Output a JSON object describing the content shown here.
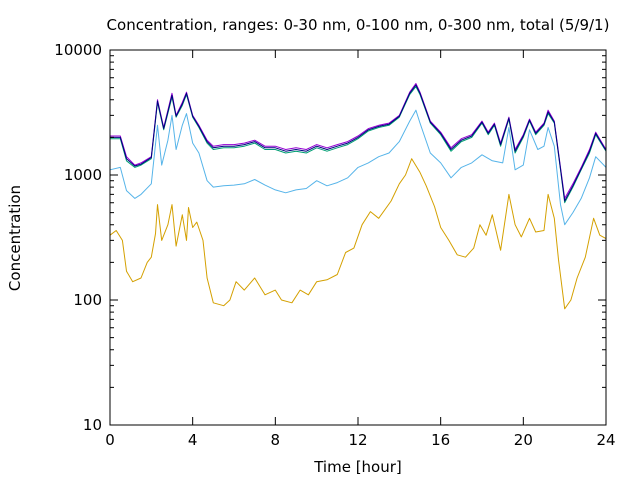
{
  "chart_data": {
    "type": "line",
    "title": "Concentration, ranges: 0-30 nm, 0-100 nm, 0-300 nm, total (5/9/1)",
    "xlabel": "Time [hour]",
    "ylabel": "Concentration",
    "xlim": [
      0,
      24
    ],
    "ylim": [
      10,
      10000
    ],
    "yscale": "log",
    "grid": false,
    "legend": "none",
    "x_ticks": [
      0,
      4,
      8,
      12,
      16,
      20,
      24
    ],
    "x_tick_labels": [
      "0",
      "4",
      "8",
      "12",
      "16",
      "20",
      "24"
    ],
    "y_ticks": [
      10,
      100,
      1000,
      10000
    ],
    "y_tick_labels": [
      "10",
      "100",
      "1000",
      "10000"
    ],
    "series": [
      {
        "color": "#d4a000",
        "points": [
          [
            0,
            330
          ],
          [
            0.3,
            360
          ],
          [
            0.6,
            300
          ],
          [
            0.8,
            170
          ],
          [
            1.1,
            140
          ],
          [
            1.5,
            150
          ],
          [
            1.8,
            200
          ],
          [
            2.0,
            220
          ],
          [
            2.2,
            340
          ],
          [
            2.3,
            580
          ],
          [
            2.5,
            300
          ],
          [
            2.8,
            400
          ],
          [
            3.0,
            580
          ],
          [
            3.2,
            270
          ],
          [
            3.5,
            480
          ],
          [
            3.7,
            300
          ],
          [
            3.8,
            550
          ],
          [
            4.0,
            380
          ],
          [
            4.2,
            420
          ],
          [
            4.5,
            300
          ],
          [
            4.7,
            150
          ],
          [
            5.0,
            95
          ],
          [
            5.5,
            90
          ],
          [
            5.8,
            100
          ],
          [
            6.1,
            140
          ],
          [
            6.5,
            120
          ],
          [
            7.0,
            150
          ],
          [
            7.5,
            110
          ],
          [
            8.0,
            120
          ],
          [
            8.3,
            100
          ],
          [
            8.8,
            95
          ],
          [
            9.2,
            120
          ],
          [
            9.6,
            110
          ],
          [
            10.0,
            140
          ],
          [
            10.5,
            145
          ],
          [
            11.0,
            160
          ],
          [
            11.4,
            240
          ],
          [
            11.8,
            260
          ],
          [
            12.2,
            400
          ],
          [
            12.6,
            510
          ],
          [
            13.0,
            450
          ],
          [
            13.6,
            620
          ],
          [
            14.0,
            850
          ],
          [
            14.3,
            1000
          ],
          [
            14.6,
            1350
          ],
          [
            15.0,
            1050
          ],
          [
            15.3,
            820
          ],
          [
            15.7,
            560
          ],
          [
            16.0,
            380
          ],
          [
            16.4,
            300
          ],
          [
            16.8,
            230
          ],
          [
            17.2,
            220
          ],
          [
            17.6,
            260
          ],
          [
            17.9,
            400
          ],
          [
            18.2,
            330
          ],
          [
            18.5,
            480
          ],
          [
            18.9,
            250
          ],
          [
            19.3,
            700
          ],
          [
            19.6,
            400
          ],
          [
            19.9,
            320
          ],
          [
            20.3,
            450
          ],
          [
            20.6,
            350
          ],
          [
            21.0,
            360
          ],
          [
            21.2,
            700
          ],
          [
            21.5,
            450
          ],
          [
            21.7,
            210
          ],
          [
            22.0,
            85
          ],
          [
            22.3,
            100
          ],
          [
            22.6,
            150
          ],
          [
            23.0,
            220
          ],
          [
            23.4,
            450
          ],
          [
            23.7,
            330
          ],
          [
            24.0,
            310
          ]
        ]
      },
      {
        "color": "#56b4e9",
        "points": [
          [
            0,
            1100
          ],
          [
            0.5,
            1150
          ],
          [
            0.8,
            750
          ],
          [
            1.2,
            650
          ],
          [
            1.5,
            700
          ],
          [
            2.0,
            850
          ],
          [
            2.3,
            2500
          ],
          [
            2.5,
            1200
          ],
          [
            2.8,
            1900
          ],
          [
            3.0,
            3000
          ],
          [
            3.2,
            1600
          ],
          [
            3.5,
            2500
          ],
          [
            3.7,
            3100
          ],
          [
            4.0,
            1800
          ],
          [
            4.3,
            1500
          ],
          [
            4.7,
            900
          ],
          [
            5.0,
            800
          ],
          [
            5.5,
            820
          ],
          [
            6.0,
            830
          ],
          [
            6.5,
            850
          ],
          [
            7.0,
            920
          ],
          [
            7.5,
            830
          ],
          [
            8.0,
            760
          ],
          [
            8.5,
            720
          ],
          [
            9.0,
            760
          ],
          [
            9.5,
            780
          ],
          [
            10.0,
            900
          ],
          [
            10.5,
            820
          ],
          [
            11.0,
            870
          ],
          [
            11.5,
            950
          ],
          [
            12.0,
            1150
          ],
          [
            12.5,
            1250
          ],
          [
            13.0,
            1400
          ],
          [
            13.5,
            1500
          ],
          [
            14.0,
            1850
          ],
          [
            14.5,
            2700
          ],
          [
            14.8,
            3300
          ],
          [
            15.0,
            2600
          ],
          [
            15.5,
            1500
          ],
          [
            16.0,
            1250
          ],
          [
            16.5,
            950
          ],
          [
            17.0,
            1150
          ],
          [
            17.5,
            1250
          ],
          [
            18.0,
            1450
          ],
          [
            18.5,
            1300
          ],
          [
            19.0,
            1250
          ],
          [
            19.3,
            2400
          ],
          [
            19.6,
            1100
          ],
          [
            20.0,
            1200
          ],
          [
            20.3,
            2300
          ],
          [
            20.7,
            1600
          ],
          [
            21.0,
            1700
          ],
          [
            21.2,
            2400
          ],
          [
            21.5,
            1700
          ],
          [
            21.8,
            580
          ],
          [
            22.0,
            400
          ],
          [
            22.4,
            500
          ],
          [
            22.8,
            650
          ],
          [
            23.2,
            950
          ],
          [
            23.5,
            1400
          ],
          [
            24.0,
            1150
          ]
        ]
      },
      {
        "color": "#009e73",
        "points": [
          [
            0,
            1950
          ],
          [
            0.5,
            1950
          ],
          [
            0.8,
            1300
          ],
          [
            1.2,
            1150
          ],
          [
            1.5,
            1200
          ],
          [
            2.0,
            1350
          ],
          [
            2.3,
            3800
          ],
          [
            2.6,
            2300
          ],
          [
            3.0,
            4200
          ],
          [
            3.2,
            2900
          ],
          [
            3.5,
            3600
          ],
          [
            3.7,
            4400
          ],
          [
            4.0,
            2900
          ],
          [
            4.3,
            2400
          ],
          [
            4.7,
            1800
          ],
          [
            5.0,
            1600
          ],
          [
            5.5,
            1650
          ],
          [
            6.0,
            1650
          ],
          [
            6.5,
            1700
          ],
          [
            7.0,
            1800
          ],
          [
            7.5,
            1600
          ],
          [
            8.0,
            1600
          ],
          [
            8.5,
            1500
          ],
          [
            9.0,
            1550
          ],
          [
            9.5,
            1500
          ],
          [
            10.0,
            1650
          ],
          [
            10.5,
            1550
          ],
          [
            11.0,
            1650
          ],
          [
            11.5,
            1750
          ],
          [
            12.0,
            1950
          ],
          [
            12.5,
            2250
          ],
          [
            13.0,
            2400
          ],
          [
            13.5,
            2500
          ],
          [
            14.0,
            2900
          ],
          [
            14.5,
            4400
          ],
          [
            14.8,
            5100
          ],
          [
            15.0,
            4400
          ],
          [
            15.5,
            2600
          ],
          [
            16.0,
            2100
          ],
          [
            16.5,
            1550
          ],
          [
            17.0,
            1850
          ],
          [
            17.5,
            2000
          ],
          [
            18.0,
            2600
          ],
          [
            18.3,
            2100
          ],
          [
            18.6,
            2500
          ],
          [
            18.9,
            1700
          ],
          [
            19.3,
            2800
          ],
          [
            19.6,
            1500
          ],
          [
            20.0,
            2000
          ],
          [
            20.3,
            2700
          ],
          [
            20.6,
            2100
          ],
          [
            21.0,
            2500
          ],
          [
            21.2,
            3100
          ],
          [
            21.5,
            2600
          ],
          [
            21.8,
            1100
          ],
          [
            22.0,
            600
          ],
          [
            22.4,
            800
          ],
          [
            22.8,
            1100
          ],
          [
            23.2,
            1500
          ],
          [
            23.5,
            2100
          ],
          [
            24.0,
            1550
          ]
        ]
      },
      {
        "color": "#9400d3",
        "points": [
          [
            0,
            2050
          ],
          [
            0.5,
            2050
          ],
          [
            0.8,
            1400
          ],
          [
            1.2,
            1200
          ],
          [
            1.5,
            1250
          ],
          [
            2.0,
            1400
          ],
          [
            2.3,
            4000
          ],
          [
            2.6,
            2400
          ],
          [
            3.0,
            4500
          ],
          [
            3.2,
            3000
          ],
          [
            3.5,
            3800
          ],
          [
            3.7,
            4600
          ],
          [
            4.0,
            3000
          ],
          [
            4.3,
            2500
          ],
          [
            4.7,
            1900
          ],
          [
            5.0,
            1700
          ],
          [
            5.5,
            1750
          ],
          [
            6.0,
            1750
          ],
          [
            6.5,
            1800
          ],
          [
            7.0,
            1900
          ],
          [
            7.5,
            1700
          ],
          [
            8.0,
            1700
          ],
          [
            8.5,
            1600
          ],
          [
            9.0,
            1650
          ],
          [
            9.5,
            1600
          ],
          [
            10.0,
            1750
          ],
          [
            10.5,
            1650
          ],
          [
            11.0,
            1750
          ],
          [
            11.5,
            1850
          ],
          [
            12.0,
            2050
          ],
          [
            12.5,
            2350
          ],
          [
            13.0,
            2500
          ],
          [
            13.5,
            2600
          ],
          [
            14.0,
            3000
          ],
          [
            14.5,
            4600
          ],
          [
            14.8,
            5400
          ],
          [
            15.0,
            4600
          ],
          [
            15.5,
            2700
          ],
          [
            16.0,
            2200
          ],
          [
            16.5,
            1650
          ],
          [
            17.0,
            1950
          ],
          [
            17.5,
            2100
          ],
          [
            18.0,
            2700
          ],
          [
            18.3,
            2200
          ],
          [
            18.6,
            2600
          ],
          [
            18.9,
            1800
          ],
          [
            19.3,
            2900
          ],
          [
            19.6,
            1600
          ],
          [
            20.0,
            2100
          ],
          [
            20.3,
            2800
          ],
          [
            20.6,
            2200
          ],
          [
            21.0,
            2600
          ],
          [
            21.2,
            3300
          ],
          [
            21.5,
            2700
          ],
          [
            21.8,
            1150
          ],
          [
            22.0,
            650
          ],
          [
            22.4,
            850
          ],
          [
            22.8,
            1150
          ],
          [
            23.2,
            1600
          ],
          [
            23.5,
            2200
          ],
          [
            24.0,
            1600
          ]
        ]
      },
      {
        "color": "#000080",
        "points": [
          [
            0,
            2000
          ],
          [
            0.5,
            2000
          ],
          [
            0.8,
            1350
          ],
          [
            1.2,
            1180
          ],
          [
            1.5,
            1220
          ],
          [
            2.0,
            1380
          ],
          [
            2.3,
            3900
          ],
          [
            2.6,
            2350
          ],
          [
            3.0,
            4350
          ],
          [
            3.2,
            2950
          ],
          [
            3.5,
            3700
          ],
          [
            3.7,
            4500
          ],
          [
            4.0,
            2950
          ],
          [
            4.3,
            2450
          ],
          [
            4.7,
            1850
          ],
          [
            5.0,
            1650
          ],
          [
            5.5,
            1700
          ],
          [
            6.0,
            1700
          ],
          [
            6.5,
            1750
          ],
          [
            7.0,
            1850
          ],
          [
            7.5,
            1650
          ],
          [
            8.0,
            1650
          ],
          [
            8.5,
            1550
          ],
          [
            9.0,
            1600
          ],
          [
            9.5,
            1550
          ],
          [
            10.0,
            1700
          ],
          [
            10.5,
            1600
          ],
          [
            11.0,
            1700
          ],
          [
            11.5,
            1800
          ],
          [
            12.0,
            2000
          ],
          [
            12.5,
            2300
          ],
          [
            13.0,
            2450
          ],
          [
            13.5,
            2550
          ],
          [
            14.0,
            2950
          ],
          [
            14.5,
            4500
          ],
          [
            14.8,
            5250
          ],
          [
            15.0,
            4500
          ],
          [
            15.5,
            2650
          ],
          [
            16.0,
            2150
          ],
          [
            16.5,
            1600
          ],
          [
            17.0,
            1900
          ],
          [
            17.5,
            2050
          ],
          [
            18.0,
            2650
          ],
          [
            18.3,
            2150
          ],
          [
            18.6,
            2550
          ],
          [
            18.9,
            1750
          ],
          [
            19.3,
            2850
          ],
          [
            19.6,
            1550
          ],
          [
            20.0,
            2050
          ],
          [
            20.3,
            2750
          ],
          [
            20.6,
            2150
          ],
          [
            21.0,
            2550
          ],
          [
            21.2,
            3200
          ],
          [
            21.5,
            2650
          ],
          [
            21.8,
            1120
          ],
          [
            22.0,
            620
          ],
          [
            22.4,
            820
          ],
          [
            22.8,
            1120
          ],
          [
            23.2,
            1550
          ],
          [
            23.5,
            2150
          ],
          [
            24.0,
            1570
          ]
        ]
      }
    ]
  }
}
